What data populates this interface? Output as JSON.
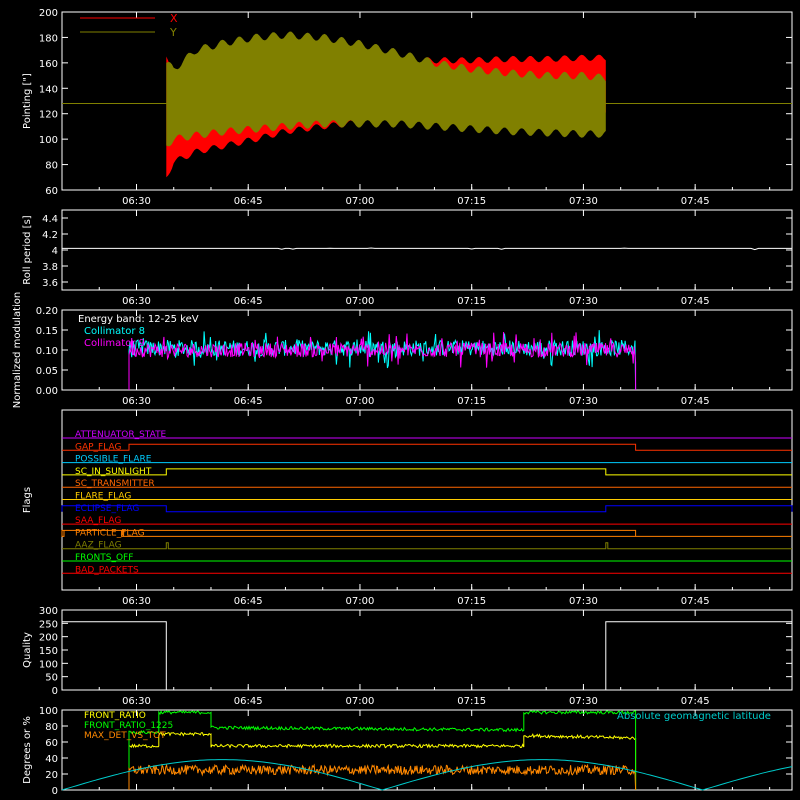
{
  "time_ticks": [
    "06:30",
    "06:45",
    "07:00",
    "07:15",
    "07:30",
    "07:45"
  ],
  "time_range": [
    "06:20",
    "07:58"
  ],
  "chart_data": [
    {
      "id": "pointing",
      "type": "area",
      "ylabel": "Pointing [\"]",
      "ylim": [
        60,
        200
      ],
      "yticks": [
        60,
        80,
        100,
        120,
        140,
        160,
        180,
        200
      ],
      "legend": [
        {
          "name": "X",
          "color": "#ff0000"
        },
        {
          "name": "Y",
          "color": "#808000"
        }
      ],
      "baseline": 128,
      "series": [
        {
          "name": "X",
          "color": "#ff0000",
          "x": [
            "06:34",
            "06:35",
            "06:38",
            "06:42",
            "06:46",
            "06:50",
            "06:55",
            "07:00",
            "07:05",
            "07:10",
            "07:15",
            "07:20",
            "07:25",
            "07:30",
            "07:33"
          ],
          "upper": [
            165,
            146,
            150,
            155,
            158,
            160,
            162,
            162,
            162,
            162,
            162,
            163,
            163,
            164,
            164
          ],
          "lower": [
            70,
            82,
            90,
            95,
            100,
            106,
            110,
            113,
            115,
            116,
            117,
            118,
            118,
            119,
            119
          ]
        },
        {
          "name": "Y",
          "color": "#808000",
          "x": [
            "06:34",
            "06:35",
            "06:38",
            "06:42",
            "06:46",
            "06:50",
            "06:55",
            "07:00",
            "07:05",
            "07:10",
            "07:15",
            "07:20",
            "07:25",
            "07:30",
            "07:33"
          ],
          "upper": [
            160,
            155,
            170,
            176,
            180,
            182,
            180,
            175,
            168,
            160,
            155,
            152,
            150,
            150,
            148
          ],
          "lower": [
            95,
            100,
            103,
            106,
            108,
            110,
            112,
            112,
            112,
            110,
            108,
            106,
            105,
            104,
            104
          ]
        }
      ]
    },
    {
      "id": "roll",
      "type": "line",
      "ylabel": "Roll period [s]",
      "ylim": [
        3.5,
        4.5
      ],
      "yticks": [
        3.6,
        3.8,
        4.0,
        4.2,
        4.4
      ],
      "series": [
        {
          "name": "",
          "color": "#ffffff",
          "value": 4.02
        }
      ]
    },
    {
      "id": "modulation",
      "type": "line",
      "ylabel": "Normalized modulation",
      "ylim": [
        0.0,
        0.2
      ],
      "yticks": [
        "0.00",
        "0.05",
        "0.10",
        "0.15",
        "0.20"
      ],
      "annotation": "Energy band: 12-25 keV",
      "legend": [
        {
          "name": "Collimator 8",
          "color": "#00ffff"
        },
        {
          "name": "Collimator 9",
          "color": "#ff00ff"
        }
      ],
      "series": [
        {
          "name": "Collimator 8",
          "color": "#00ffff",
          "x_start": "06:29",
          "x_end": "07:37",
          "mean": 0.105,
          "spread": 0.02
        },
        {
          "name": "Collimator 9",
          "color": "#ff00ff",
          "x_start": "06:29",
          "x_end": "07:37",
          "mean": 0.1,
          "spread": 0.018
        }
      ]
    },
    {
      "id": "flags",
      "type": "line",
      "ylabel": "Flags",
      "rows": [
        {
          "name": "ATTENUATOR_STATE",
          "color": "#cc00ff",
          "segments": []
        },
        {
          "name": "GAP_FLAG",
          "color": "#ff3300",
          "segments": [
            [
              "06:29",
              "07:37"
            ]
          ]
        },
        {
          "name": "POSSIBLE_FLARE",
          "color": "#00ccff",
          "segments": []
        },
        {
          "name": "SC_IN_SUNLIGHT",
          "color": "#ffff00",
          "segments": [
            [
              "06:34",
              "07:33"
            ]
          ]
        },
        {
          "name": "SC_TRANSMITTER",
          "color": "#ff6600",
          "segments": []
        },
        {
          "name": "FLARE_FLAG",
          "color": "#ffcc00",
          "segments": []
        },
        {
          "name": "ECLIPSE_FLAG",
          "color": "#0000ff",
          "segments": [
            [
              "06:20",
              "06:34"
            ],
            [
              "07:33",
              "07:58"
            ]
          ]
        },
        {
          "name": "SAA_FLAG",
          "color": "#ff0000",
          "segments": []
        },
        {
          "name": "PARTICLE_FLAG",
          "color": "#ff8000",
          "segments": [
            [
              "06:20",
              "06:20"
            ],
            [
              "06:28",
              "06:28"
            ],
            [
              "06:20",
              "07:37"
            ]
          ]
        },
        {
          "name": "AAZ_FLAG",
          "color": "#808000",
          "segments": [
            [
              "06:34",
              "06:34"
            ],
            [
              "07:33",
              "07:33"
            ]
          ]
        },
        {
          "name": "FRONTS_OFF",
          "color": "#00ff00",
          "segments": []
        },
        {
          "name": "BAD_PACKETS",
          "color": "#ff0000",
          "segments": []
        }
      ]
    },
    {
      "id": "quality",
      "type": "line",
      "ylabel": "Quality",
      "ylim": [
        0,
        300
      ],
      "yticks": [
        0,
        50,
        100,
        150,
        200,
        250,
        300
      ],
      "series": [
        {
          "name": "",
          "color": "#ffffff",
          "x": [
            "06:20",
            "06:34",
            "06:34",
            "07:33",
            "07:33",
            "07:58"
          ],
          "y": [
            256,
            256,
            0,
            0,
            256,
            256
          ]
        }
      ]
    },
    {
      "id": "ratios",
      "type": "line",
      "ylabel": "Degrees or %",
      "ylim": [
        0,
        100
      ],
      "yticks": [
        0,
        20,
        40,
        60,
        80,
        100
      ],
      "legend": [
        {
          "name": "FRONT_RATIO",
          "color": "#ffff00"
        },
        {
          "name": "FRONT_RATIO_1225",
          "color": "#00ff00"
        },
        {
          "name": "MAX_DET_VS_TOT",
          "color": "#ff8800"
        }
      ],
      "annotation": "Absolute geomagnetic latitude",
      "annotation_color": "#00cccc",
      "series": [
        {
          "name": "FRONT_RATIO",
          "color": "#ffff00",
          "x": [
            "06:29",
            "06:29",
            "06:33",
            "06:33",
            "06:40",
            "06:40",
            "07:22",
            "07:22",
            "07:37"
          ],
          "y": [
            0,
            55,
            55,
            70,
            70,
            55,
            55,
            68,
            65
          ]
        },
        {
          "name": "FRONT_RATIO_1225",
          "color": "#00ff00",
          "x": [
            "06:29",
            "06:29",
            "06:33",
            "06:33",
            "06:40",
            "06:40",
            "07:22",
            "07:22",
            "07:37"
          ],
          "y": [
            0,
            72,
            72,
            97,
            97,
            78,
            75,
            97,
            97
          ]
        },
        {
          "name": "MAX_DET_VS_TOT",
          "color": "#ff8800",
          "x_start": "06:29",
          "x_end": "07:37",
          "mean": 25,
          "spread": 6
        },
        {
          "name": "Absolute geomagnetic latitude",
          "color": "#00cccc",
          "x": [
            "06:20",
            "06:43",
            "07:03",
            "07:27",
            "07:48",
            "07:58"
          ],
          "y": [
            0,
            38,
            0,
            38,
            0,
            18
          ]
        }
      ]
    }
  ]
}
